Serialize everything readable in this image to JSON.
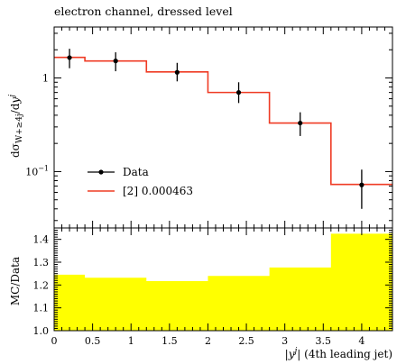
{
  "colors": {
    "mc_line": "#ef3b24",
    "data_marker": "#000000",
    "ratio_band": "#ffff00",
    "frame": "#000000"
  },
  "chart_data": [
    {
      "type": "line",
      "title": "electron channel, dressed level",
      "ylabel": "dσ_{W+≥4j}/d|y^j|",
      "ylabel_parts": {
        "main": "dσ",
        "sub": "W+≥4j",
        "mid": "/d",
        "var": "y",
        "sup": "j"
      },
      "yscale": "log",
      "xlim": [
        0,
        4.4
      ],
      "ylim": [
        0.025,
        3.5
      ],
      "y_major_ticks": [
        {
          "value": 1,
          "label": "1"
        },
        {
          "value": 0.1,
          "label": "10",
          "exp": "−1"
        }
      ],
      "legend": {
        "placement": "lower-left"
      },
      "series": [
        {
          "name": "Data",
          "style": "points",
          "x": [
            0.2,
            0.8,
            1.6,
            2.4,
            3.2,
            4.0
          ],
          "y": [
            1.65,
            1.52,
            1.15,
            0.7,
            0.33,
            0.072
          ],
          "y_err_low": [
            1.27,
            1.18,
            0.92,
            0.54,
            0.24,
            0.04
          ],
          "y_err_high": [
            2.05,
            1.88,
            1.45,
            0.9,
            0.43,
            0.105
          ]
        },
        {
          "name": "[2] 0.000463",
          "style": "step",
          "bin_edges": [
            0,
            0.4,
            1.2,
            2.0,
            2.8,
            3.6,
            4.4
          ],
          "values": [
            1.66,
            1.52,
            1.16,
            0.7,
            0.33,
            0.073
          ]
        }
      ]
    },
    {
      "type": "area",
      "ylabel": "MC/Data",
      "xlabel": "|y^j| (4th leading jet)",
      "xlabel_parts": {
        "open": "|",
        "var": "y",
        "sup": "j",
        "close": "| (4th leading jet)"
      },
      "xlim": [
        0,
        4.4
      ],
      "ylim": [
        1.0,
        1.45
      ],
      "x_ticks": [
        {
          "value": 0,
          "label": "0"
        },
        {
          "value": 0.5,
          "label": "0.5"
        },
        {
          "value": 1,
          "label": "1"
        },
        {
          "value": 1.5,
          "label": "1.5"
        },
        {
          "value": 2,
          "label": "2"
        },
        {
          "value": 2.5,
          "label": "2.5"
        },
        {
          "value": 3,
          "label": "3"
        },
        {
          "value": 3.5,
          "label": "3.5"
        },
        {
          "value": 4,
          "label": "4"
        }
      ],
      "y_ticks": [
        {
          "value": 1.0,
          "label": "1.0"
        },
        {
          "value": 1.1,
          "label": "1.1"
        },
        {
          "value": 1.2,
          "label": "1.2"
        },
        {
          "value": 1.3,
          "label": "1.3"
        },
        {
          "value": 1.4,
          "label": "1.4"
        }
      ],
      "series": [
        {
          "style": "filled-step",
          "bin_edges": [
            0,
            0.4,
            1.2,
            2.0,
            2.8,
            3.6,
            4.4
          ],
          "values": [
            1.245,
            1.232,
            1.217,
            1.24,
            1.277,
            1.425
          ]
        }
      ]
    }
  ]
}
